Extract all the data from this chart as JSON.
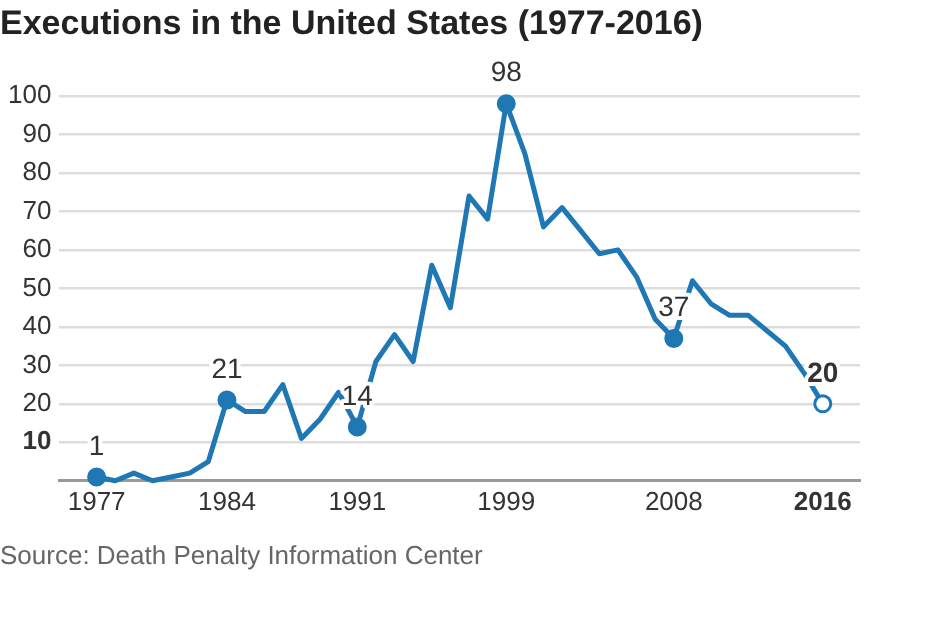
{
  "chart_data": {
    "type": "line",
    "title": "Executions in the United States (1977-2016)",
    "x": [
      1977,
      1978,
      1979,
      1980,
      1981,
      1982,
      1983,
      1984,
      1985,
      1986,
      1987,
      1988,
      1989,
      1990,
      1991,
      1992,
      1993,
      1994,
      1995,
      1996,
      1997,
      1998,
      1999,
      2000,
      2001,
      2002,
      2003,
      2004,
      2005,
      2006,
      2007,
      2008,
      2009,
      2010,
      2011,
      2012,
      2013,
      2014,
      2015,
      2016
    ],
    "series": [
      {
        "color": "#1f77b4",
        "values": [
          1,
          0,
          2,
          0,
          1,
          2,
          5,
          21,
          18,
          18,
          25,
          11,
          16,
          23,
          14,
          31,
          38,
          31,
          56,
          45,
          74,
          68,
          98,
          85,
          66,
          71,
          65,
          59,
          60,
          53,
          42,
          37,
          52,
          46,
          43,
          43,
          39,
          35,
          28,
          20
        ],
        "value_labels": [
          "1",
          null,
          null,
          null,
          null,
          null,
          null,
          "21",
          null,
          null,
          null,
          null,
          null,
          null,
          "14",
          null,
          null,
          null,
          null,
          null,
          null,
          null,
          "98",
          null,
          null,
          null,
          null,
          null,
          null,
          null,
          null,
          "37",
          null,
          null,
          null,
          null,
          null,
          null,
          null,
          "20"
        ]
      }
    ],
    "xlim": [
      1975,
      2018
    ],
    "xticks": [
      1977,
      1984,
      1991,
      1999,
      2008,
      2016
    ],
    "ylim": [
      0,
      100
    ],
    "yticks": [
      10,
      20,
      30,
      40,
      50,
      60,
      70,
      80,
      90,
      100
    ],
    "grid": "y",
    "legend": false,
    "line_style": "solid",
    "annotations": [
      "Source: Death Penalty Information Center"
    ]
  }
}
